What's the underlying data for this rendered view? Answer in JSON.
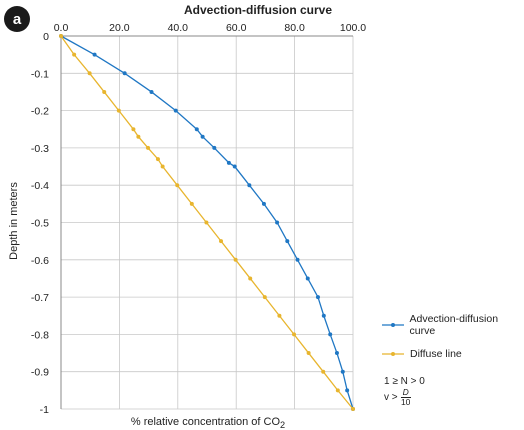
{
  "panel_label": "a",
  "chart_data": {
    "type": "line",
    "title": "Advection-diffusion curve",
    "xlabel_prefix": "% relative concentration of CO",
    "xlabel_sub": "2",
    "ylabel": "Depth in meters",
    "xlim": [
      0,
      100
    ],
    "ylim": [
      -1,
      0
    ],
    "x_ticks": [
      0,
      20,
      40,
      60,
      80,
      100
    ],
    "x_tick_labels": [
      "0.0",
      "20.0",
      "40.0",
      "60.0",
      "80.0",
      "100.0"
    ],
    "y_ticks": [
      0,
      -0.1,
      -0.2,
      -0.3,
      -0.4,
      -0.5,
      -0.6,
      -0.7,
      -0.8,
      -0.9,
      -1
    ],
    "y_tick_labels": [
      "0",
      "-0.1",
      "-0.2",
      "-0.3",
      "-0.4",
      "-0.5",
      "-0.6",
      "-0.7",
      "-0.8",
      "-0.9",
      "-1"
    ],
    "grid": true,
    "legend_position": "right",
    "series": [
      {
        "name": "Advection-diffusion curve",
        "color": "#1f77c4",
        "points": [
          [
            0,
            0
          ],
          [
            11.5,
            -0.05
          ],
          [
            21.8,
            -0.1
          ],
          [
            31,
            -0.15
          ],
          [
            39.3,
            -0.2
          ],
          [
            46.5,
            -0.25
          ],
          [
            48.5,
            -0.27
          ],
          [
            52.5,
            -0.3
          ],
          [
            57.5,
            -0.34
          ],
          [
            59.5,
            -0.35
          ],
          [
            64.5,
            -0.4
          ],
          [
            69.5,
            -0.45
          ],
          [
            74,
            -0.5
          ],
          [
            77.5,
            -0.55
          ],
          [
            81,
            -0.6
          ],
          [
            84.5,
            -0.65
          ],
          [
            88,
            -0.7
          ],
          [
            90,
            -0.75
          ],
          [
            92.2,
            -0.8
          ],
          [
            94.5,
            -0.85
          ],
          [
            96.5,
            -0.9
          ],
          [
            98,
            -0.95
          ],
          [
            100,
            -1
          ]
        ]
      },
      {
        "name": "Diffuse line",
        "color": "#e8b52e",
        "points": [
          [
            0,
            0
          ],
          [
            4.5,
            -0.05
          ],
          [
            9.8,
            -0.1
          ],
          [
            14.8,
            -0.15
          ],
          [
            19.8,
            -0.2
          ],
          [
            24.8,
            -0.25
          ],
          [
            26.5,
            -0.27
          ],
          [
            29.8,
            -0.3
          ],
          [
            33.2,
            -0.33
          ],
          [
            34.8,
            -0.35
          ],
          [
            39.8,
            -0.4
          ],
          [
            44.8,
            -0.45
          ],
          [
            49.8,
            -0.5
          ],
          [
            54.8,
            -0.55
          ],
          [
            59.8,
            -0.6
          ],
          [
            64.8,
            -0.65
          ],
          [
            69.8,
            -0.7
          ],
          [
            74.8,
            -0.75
          ],
          [
            79.8,
            -0.8
          ],
          [
            84.8,
            -0.85
          ],
          [
            89.8,
            -0.9
          ],
          [
            94.8,
            -0.95
          ],
          [
            100,
            -1
          ]
        ]
      }
    ],
    "annotations": {
      "line1": "1 ≥ N > 0",
      "line2_lhs": "v >",
      "line2_num": "D",
      "line2_den": "10"
    }
  }
}
